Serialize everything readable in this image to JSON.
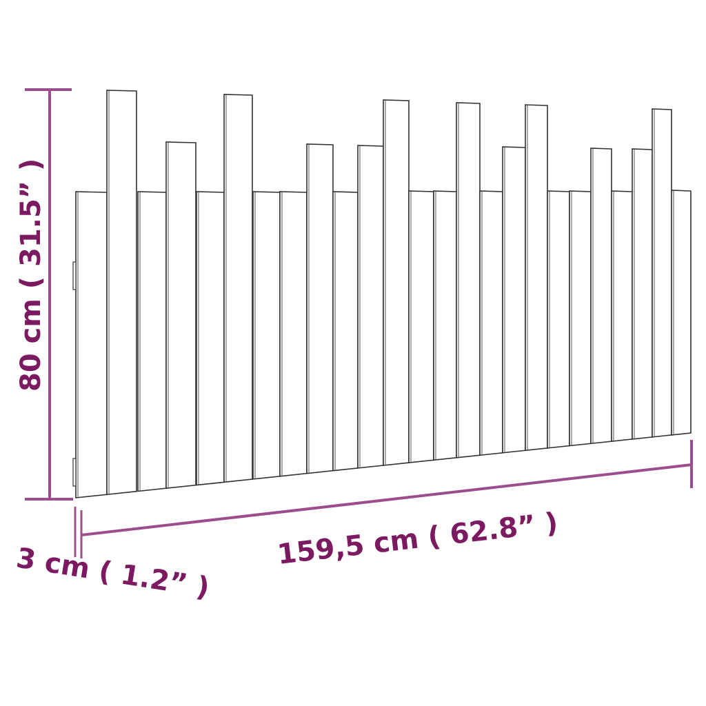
{
  "dimensions": {
    "height_label": "80 cm ( 31.5” )",
    "width_label": "159,5 cm ( 62.8” )",
    "depth_label": "3 cm ( 1.2” )"
  },
  "colors": {
    "dimension_line": "#9c4d8e",
    "dimension_text": "#7b1a60",
    "outline": "#333333"
  }
}
